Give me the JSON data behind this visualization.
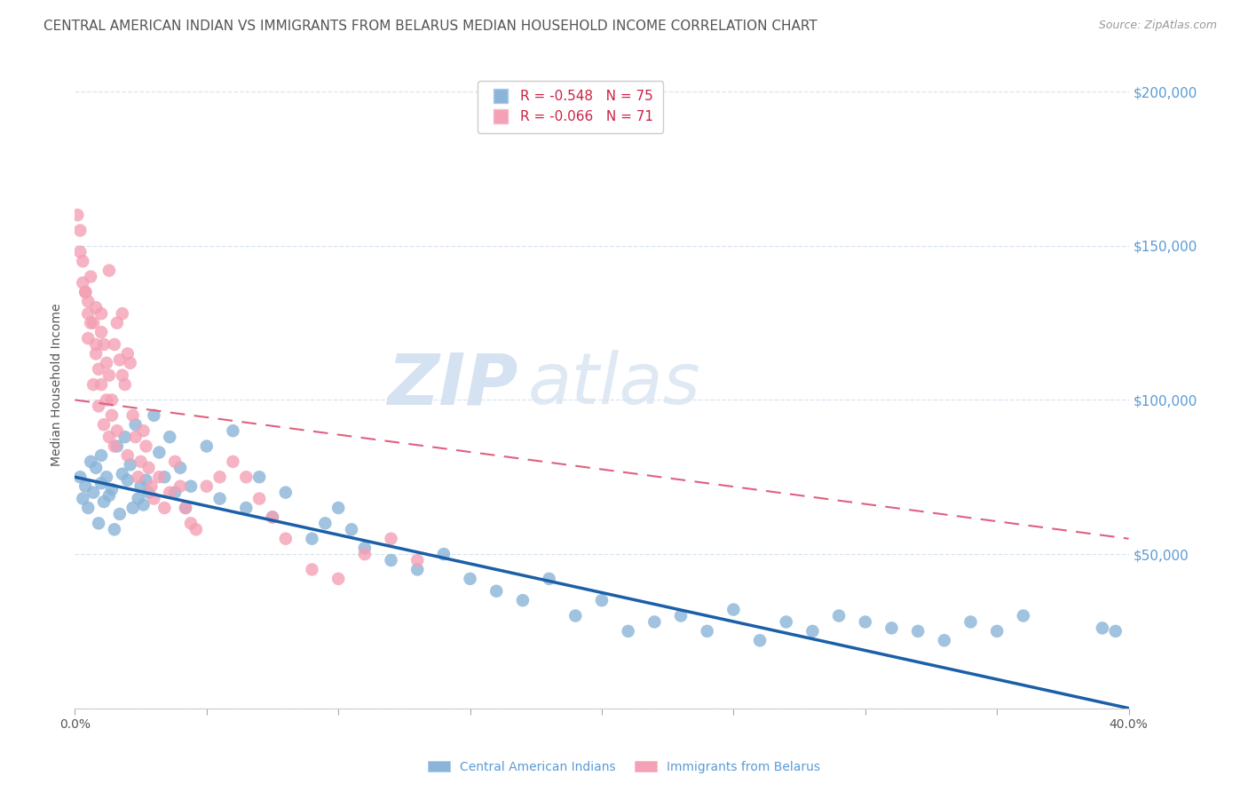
{
  "title": "CENTRAL AMERICAN INDIAN VS IMMIGRANTS FROM BELARUS MEDIAN HOUSEHOLD INCOME CORRELATION CHART",
  "source": "Source: ZipAtlas.com",
  "ylabel": "Median Household Income",
  "y_ticks": [
    0,
    50000,
    100000,
    150000,
    200000
  ],
  "y_tick_labels": [
    "",
    "$50,000",
    "$100,000",
    "$150,000",
    "$200,000"
  ],
  "x_min": 0.0,
  "x_max": 0.4,
  "y_min": 0,
  "y_max": 210000,
  "series1_label": "Central American Indians",
  "series1_color": "#8ab4d8",
  "series1_line_color": "#1a5fa8",
  "series2_label": "Immigrants from Belarus",
  "series2_color": "#f4a0b5",
  "series2_line_color": "#e06080",
  "series1_R": -0.548,
  "series1_N": 75,
  "series2_R": -0.066,
  "series2_N": 71,
  "watermark_zip": "ZIP",
  "watermark_atlas": "atlas",
  "background_color": "#ffffff",
  "grid_color": "#d8e4f0",
  "axis_label_color": "#5b9bd5",
  "title_color": "#555555",
  "title_fontsize": 11.0,
  "source_fontsize": 9,
  "blue_x": [
    0.002,
    0.003,
    0.004,
    0.005,
    0.006,
    0.007,
    0.008,
    0.009,
    0.01,
    0.01,
    0.011,
    0.012,
    0.013,
    0.014,
    0.015,
    0.016,
    0.017,
    0.018,
    0.019,
    0.02,
    0.021,
    0.022,
    0.023,
    0.024,
    0.025,
    0.026,
    0.027,
    0.028,
    0.03,
    0.032,
    0.034,
    0.036,
    0.038,
    0.04,
    0.042,
    0.044,
    0.05,
    0.055,
    0.06,
    0.065,
    0.07,
    0.075,
    0.08,
    0.09,
    0.095,
    0.1,
    0.105,
    0.11,
    0.12,
    0.13,
    0.14,
    0.15,
    0.16,
    0.17,
    0.18,
    0.19,
    0.2,
    0.21,
    0.22,
    0.23,
    0.24,
    0.25,
    0.26,
    0.27,
    0.28,
    0.29,
    0.3,
    0.31,
    0.32,
    0.33,
    0.34,
    0.35,
    0.36,
    0.39,
    0.395
  ],
  "blue_y": [
    75000,
    68000,
    72000,
    65000,
    80000,
    70000,
    78000,
    60000,
    73000,
    82000,
    67000,
    75000,
    69000,
    71000,
    58000,
    85000,
    63000,
    76000,
    88000,
    74000,
    79000,
    65000,
    92000,
    68000,
    72000,
    66000,
    74000,
    70000,
    95000,
    83000,
    75000,
    88000,
    70000,
    78000,
    65000,
    72000,
    85000,
    68000,
    90000,
    65000,
    75000,
    62000,
    70000,
    55000,
    60000,
    65000,
    58000,
    52000,
    48000,
    45000,
    50000,
    42000,
    38000,
    35000,
    42000,
    30000,
    35000,
    25000,
    28000,
    30000,
    25000,
    32000,
    22000,
    28000,
    25000,
    30000,
    28000,
    26000,
    25000,
    22000,
    28000,
    25000,
    30000,
    26000,
    25000
  ],
  "pink_x": [
    0.001,
    0.002,
    0.003,
    0.004,
    0.005,
    0.005,
    0.006,
    0.007,
    0.008,
    0.008,
    0.009,
    0.01,
    0.01,
    0.011,
    0.012,
    0.013,
    0.013,
    0.014,
    0.015,
    0.016,
    0.017,
    0.018,
    0.018,
    0.019,
    0.02,
    0.02,
    0.021,
    0.022,
    0.023,
    0.024,
    0.025,
    0.026,
    0.027,
    0.028,
    0.029,
    0.03,
    0.032,
    0.034,
    0.036,
    0.038,
    0.04,
    0.042,
    0.044,
    0.046,
    0.05,
    0.055,
    0.06,
    0.065,
    0.07,
    0.075,
    0.08,
    0.09,
    0.1,
    0.11,
    0.12,
    0.13,
    0.003,
    0.005,
    0.007,
    0.009,
    0.011,
    0.013,
    0.015,
    0.002,
    0.004,
    0.006,
    0.008,
    0.01,
    0.012,
    0.014,
    0.016
  ],
  "pink_y": [
    160000,
    155000,
    145000,
    135000,
    128000,
    120000,
    140000,
    125000,
    115000,
    130000,
    110000,
    128000,
    122000,
    118000,
    112000,
    108000,
    142000,
    100000,
    118000,
    125000,
    113000,
    108000,
    128000,
    105000,
    115000,
    82000,
    112000,
    95000,
    88000,
    75000,
    80000,
    90000,
    85000,
    78000,
    72000,
    68000,
    75000,
    65000,
    70000,
    80000,
    72000,
    65000,
    60000,
    58000,
    72000,
    75000,
    80000,
    75000,
    68000,
    62000,
    55000,
    45000,
    42000,
    50000,
    55000,
    48000,
    138000,
    132000,
    105000,
    98000,
    92000,
    88000,
    85000,
    148000,
    135000,
    125000,
    118000,
    105000,
    100000,
    95000,
    90000
  ]
}
